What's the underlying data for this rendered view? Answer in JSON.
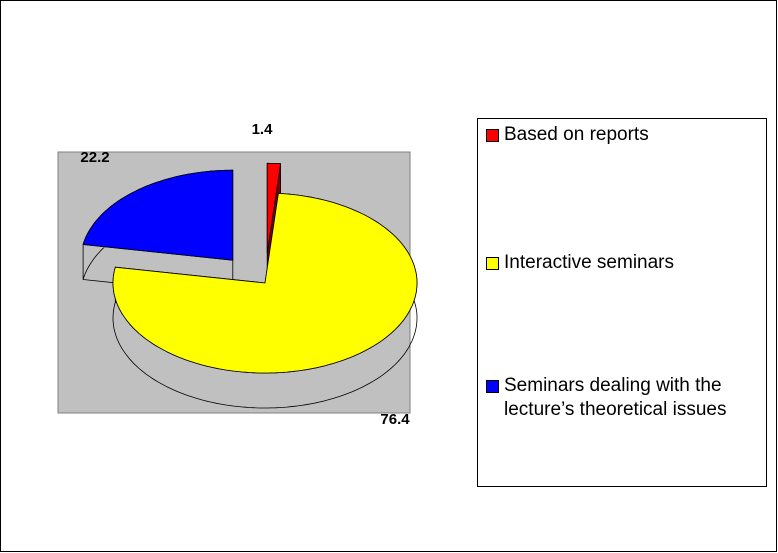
{
  "chart_data": {
    "type": "pie3d",
    "categories": [
      "Based on reports",
      "Interactive seminars",
      "Seminars dealing with the lecture’s theoretical issues"
    ],
    "values": [
      1.4,
      76.4,
      22.2
    ],
    "colors": [
      "#ff0000",
      "#ffff00",
      "#0000ff"
    ],
    "legend": "right"
  }
}
